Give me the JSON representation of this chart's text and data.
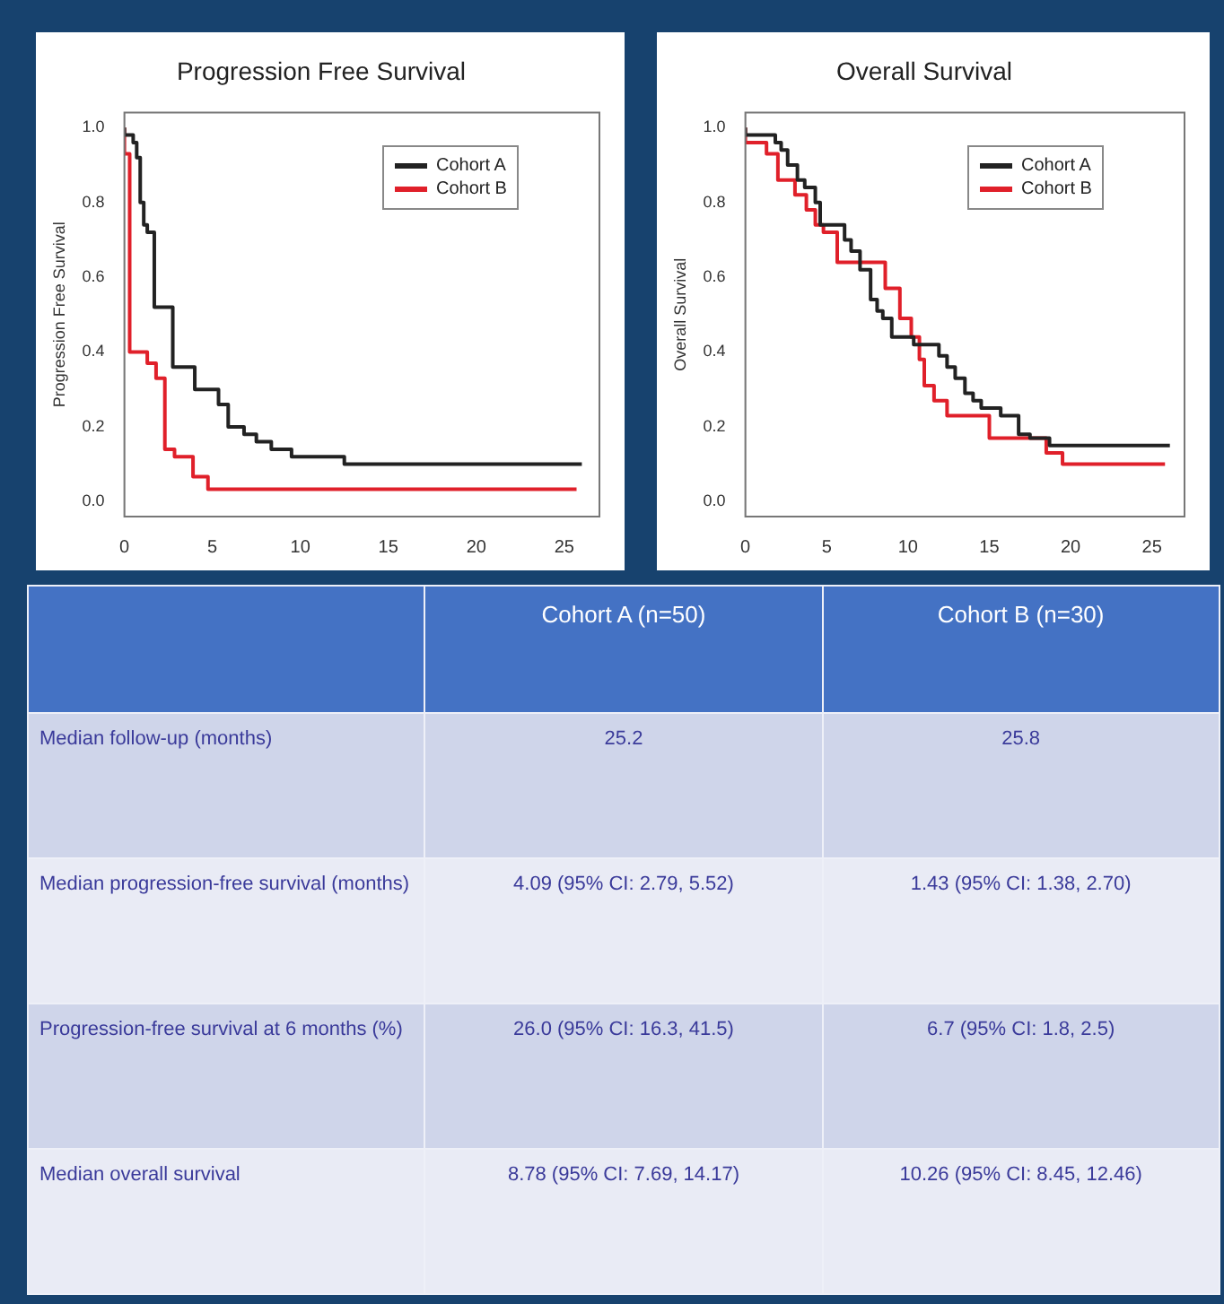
{
  "chart_data": [
    {
      "type": "step",
      "title": "Progression Free Survival",
      "ylabel": "Progression Free Survival",
      "xlim": [
        0,
        27
      ],
      "ylim": [
        -0.04,
        1.04
      ],
      "xticks": [
        0,
        5,
        10,
        15,
        20,
        25
      ],
      "yticks": [
        {
          "value": 0,
          "label": "0.0"
        },
        {
          "value": 0.2,
          "label": "0.2"
        },
        {
          "value": 0.4,
          "label": "0.4"
        },
        {
          "value": 0.6,
          "label": "0.6"
        },
        {
          "value": 0.8,
          "label": "0.8"
        },
        {
          "value": 1,
          "label": "1.0"
        }
      ],
      "grid": false,
      "legend": "top right",
      "series": [
        {
          "name": "Cohort A",
          "color": "#222222",
          "x": [
            0,
            0.5,
            0.7,
            0.9,
            1.1,
            1.3,
            1.7,
            2.75,
            4.0,
            5.35,
            5.9,
            6.8,
            7.5,
            8.35,
            9.5,
            12.5,
            15.8,
            26
          ],
          "values": [
            1.0,
            0.98,
            0.96,
            0.92,
            0.8,
            0.74,
            0.72,
            0.52,
            0.36,
            0.3,
            0.26,
            0.2,
            0.18,
            0.16,
            0.14,
            0.12,
            0.1,
            0.1
          ]
        },
        {
          "name": "Cohort B",
          "color": "#e0202a",
          "x": [
            0,
            0.3,
            1.3,
            1.8,
            2.3,
            2.85,
            3.9,
            4.75,
            12.3,
            25.7
          ],
          "values": [
            1.0,
            0.93,
            0.4,
            0.37,
            0.33,
            0.14,
            0.12,
            0.067,
            0.033,
            0.033
          ]
        }
      ]
    },
    {
      "type": "step",
      "title": "Overall Survival",
      "ylabel": "Overall Survival",
      "xlim": [
        0,
        27
      ],
      "ylim": [
        -0.04,
        1.04
      ],
      "xticks": [
        0,
        5,
        10,
        15,
        20,
        25
      ],
      "yticks": [
        {
          "value": 0,
          "label": "0.0"
        },
        {
          "value": 0.2,
          "label": "0.2"
        },
        {
          "value": 0.4,
          "label": "0.4"
        },
        {
          "value": 0.6,
          "label": "0.6"
        },
        {
          "value": 0.8,
          "label": "0.8"
        },
        {
          "value": 1,
          "label": "1.0"
        }
      ],
      "grid": false,
      "legend": "top right",
      "series": [
        {
          "name": "Cohort A",
          "color": "#222222",
          "x": [
            0,
            1.84,
            2.2,
            2.6,
            3.2,
            3.65,
            4.3,
            4.6,
            6.1,
            6.5,
            7.05,
            7.7,
            8.1,
            8.45,
            9.0,
            10.35,
            11.9,
            12.4,
            12.9,
            13.5,
            14.0,
            14.5,
            15.7,
            16.8,
            17.5,
            18.7,
            20.1,
            26.1
          ],
          "values": [
            1.0,
            0.98,
            0.96,
            0.94,
            0.9,
            0.86,
            0.84,
            0.8,
            0.74,
            0.7,
            0.67,
            0.62,
            0.54,
            0.51,
            0.49,
            0.44,
            0.42,
            0.39,
            0.36,
            0.33,
            0.29,
            0.27,
            0.25,
            0.23,
            0.18,
            0.17,
            0.15,
            0.15
          ]
        },
        {
          "name": "Cohort B",
          "color": "#e0202a",
          "x": [
            0,
            1.3,
            2.0,
            3.05,
            3.75,
            4.3,
            4.8,
            5.65,
            8.6,
            9.5,
            10.2,
            10.7,
            11.0,
            11.6,
            12.4,
            15.0,
            18.5,
            19.5,
            22.7,
            25.8
          ],
          "values": [
            1.0,
            0.96,
            0.93,
            0.86,
            0.82,
            0.78,
            0.74,
            0.72,
            0.64,
            0.57,
            0.49,
            0.44,
            0.38,
            0.31,
            0.27,
            0.23,
            0.17,
            0.13,
            0.1,
            0.1
          ]
        }
      ]
    },
    {
      "type": "other",
      "categories": [
        null,
        "Cohort A (n=50)",
        "Cohort B (n=30)"
      ],
      "y_categories": [
        "Median follow-up (months)",
        "Median progression-free survival (months)",
        "Progression-free survival at 6 months (%)",
        "Median overall survival"
      ],
      "cell_labels": [
        [
          "25.2",
          "25.8"
        ],
        [
          "4.09 (95% CI: 2.79, 5.52)",
          "1.43 (95% CI: 1.38, 2.70)"
        ],
        [
          "26.0 (95% CI: 16.3, 41.5)",
          "6.7 (95% CI: 1.8, 2.5)"
        ],
        [
          "8.78 (95% CI: 7.69, 14.17)",
          "10.26 (95% CI: 8.45, 12.46)"
        ]
      ]
    }
  ]
}
